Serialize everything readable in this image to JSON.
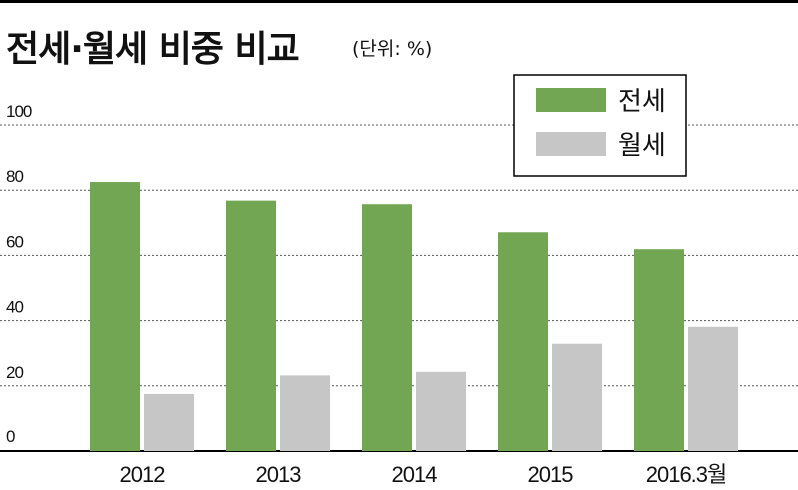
{
  "title": "전세·월세 비중 비교",
  "unit_label": "(단위: %)",
  "colors": {
    "jeonse": "#72a653",
    "wolse": "#c6c6c6"
  },
  "chart_data": {
    "type": "bar",
    "title": "전세·월세 비중 비교",
    "categories": [
      "2012",
      "2013",
      "2014",
      "2015",
      "2016.3월"
    ],
    "series": [
      {
        "name": "전세",
        "values": [
          82.5,
          76.8,
          75.7,
          67.1,
          61.9
        ]
      },
      {
        "name": "월세",
        "values": [
          17.5,
          23.2,
          24.3,
          32.9,
          38.1
        ]
      }
    ],
    "ylim": [
      0,
      100
    ],
    "yticks": [
      0,
      20,
      40,
      60,
      80,
      100
    ],
    "grid": true,
    "legend": "top-right"
  }
}
